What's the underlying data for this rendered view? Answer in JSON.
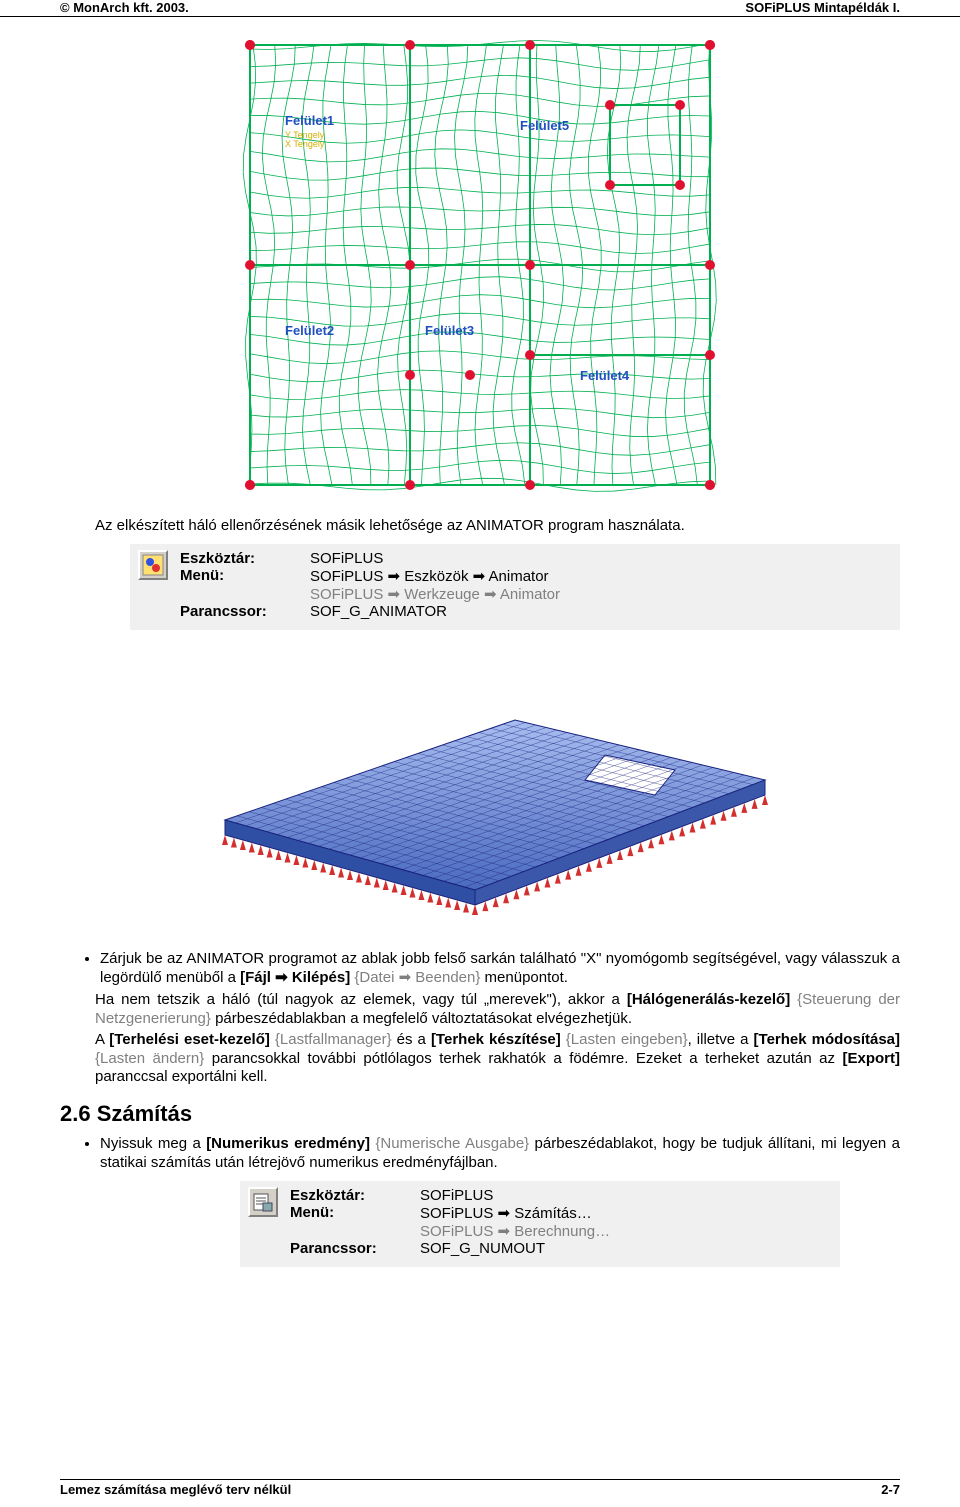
{
  "header": {
    "left": "© MonArch kft. 2003.",
    "right": "SOFiPLUS Mintapéldák I."
  },
  "mesh": {
    "labels": [
      "Felület1",
      "Felület5",
      "Felület2",
      "Felület3",
      "Felület4"
    ],
    "axis_labels": [
      "Y Tengely",
      "X Tengely"
    ],
    "line_color": "#00b050",
    "node_color": "#e01030",
    "label_color": "#2050c0"
  },
  "para1": "Az elkészített háló ellenőrzésének másik lehetősége az ANIMATOR program használata.",
  "cmd1": {
    "toolbar_label": "Eszköztár:",
    "toolbar_value": "SOFiPLUS",
    "menu_label": "Menü:",
    "menu_value1": "SOFiPLUS ➡ Eszközök ➡ Animator",
    "menu_value2_gray": "SOFiPLUS ➡ Werkzeuge ➡ Animator",
    "cmd_label": "Parancssor:",
    "cmd_value": "SOF_G_ANIMATOR"
  },
  "slab": {
    "mesh_color": "#1a237e",
    "fill_top": "#8aa7e6",
    "fill_bottom": "#2e4fa3",
    "support_color": "#d32f2f"
  },
  "bullets1": {
    "item1_a": "Zárjuk be az ANIMATOR programot az ablak jobb felső sarkán található \"X\" nyomógomb segítségével, vagy válasszuk a legördülő menüből a ",
    "item1_b_bold": "[Fájl ➡ Kilépés]",
    "item1_c_gray": " {Datei ➡ Beenden}",
    "item1_d": " menüpontot."
  },
  "para2_a": "Ha nem tetszik a háló (túl nagyok az elemek, vagy túl „merevek\"), akkor a ",
  "para2_b_bold": "[Hálógenerálás-kezelő]",
  "para2_c_gray": " {Steuerung der Netzgenerierung}",
  "para2_d": " párbeszédablakban a megfelelő változtatásokat elvégezhetjük.",
  "para3_a": "A ",
  "para3_b_bold": "[Terhelési eset-kezelő]",
  "para3_c_gray": " {Lastfallmanager}",
  "para3_d": " és a ",
  "para3_e_bold": "[Terhek készítése]",
  "para3_f_gray": " {Lasten eingeben}",
  "para3_g": ", illetve a ",
  "para3_h_bold": "[Terhek módosítása]",
  "para3_i_gray": " {Lasten ändern}",
  "para3_j": " parancsokkal további pótlólagos terhek rakhatók a födémre. Ezeket a terheket azután az ",
  "para3_k_bold": "[Export]",
  "para3_l": " paranccsal exportálni kell.",
  "section": "2.6 Számítás",
  "bullets2": {
    "item1_a": "Nyissuk meg a ",
    "item1_b_bold": "[Numerikus eredmény]",
    "item1_c_gray": " {Numerische Ausgabe}",
    "item1_d": " párbeszédablakot, hogy be tudjuk állítani, mi legyen a statikai számítás után létrejövő numerikus eredményfájlban."
  },
  "cmd2": {
    "toolbar_label": "Eszköztár:",
    "toolbar_value": "SOFiPLUS",
    "menu_label": "Menü:",
    "menu_value1": "SOFiPLUS ➡ Számítás…",
    "menu_value2_gray": "SOFiPLUS ➡ Berechnung…",
    "cmd_label": "Parancssor:",
    "cmd_value": "SOF_G_NUMOUT"
  },
  "footer": {
    "left": "Lemez számítása meglévő terv nélkül",
    "right": "2-7"
  }
}
